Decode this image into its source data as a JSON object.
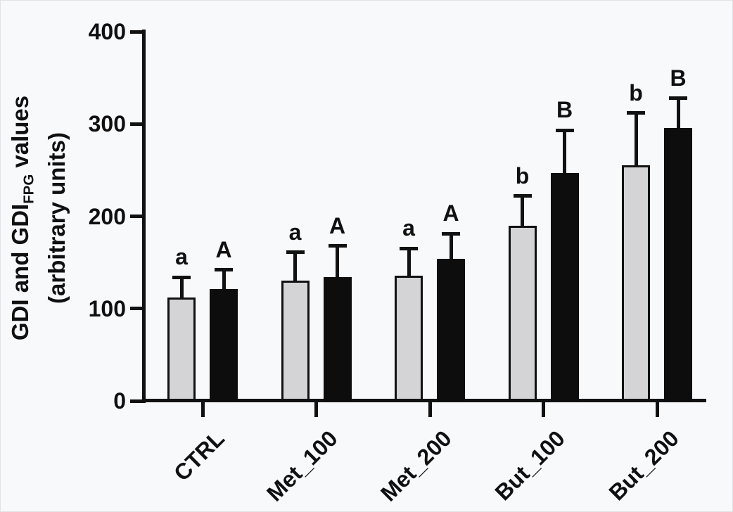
{
  "chart_data": {
    "type": "bar",
    "title": "",
    "ylabel": {
      "part1": "GDI and GDI",
      "sub": "FPG",
      "part2": " values",
      "line2": "(arbitrary units)"
    },
    "xlabel": "",
    "categories": [
      "CTRL",
      "Met_100",
      "Met_200",
      "But_100",
      "But_200"
    ],
    "series": [
      {
        "name": "GDI",
        "color": "#d4d4d6",
        "values": [
          112,
          130,
          136,
          190,
          255
        ],
        "errors": [
          22,
          31,
          29,
          32,
          57
        ],
        "letters": [
          "a",
          "a",
          "a",
          "b",
          "b"
        ]
      },
      {
        "name": "GDI_FPG",
        "color": "#0d0d0d",
        "values": [
          121,
          134,
          154,
          247,
          296
        ],
        "errors": [
          21,
          34,
          27,
          46,
          32
        ],
        "letters": [
          "A",
          "A",
          "A",
          "B",
          "B"
        ]
      }
    ],
    "y_ticks": [
      0,
      100,
      200,
      300,
      400
    ],
    "ylim": [
      0,
      400
    ],
    "grid": false,
    "legend_position": "none",
    "error_bars": "upper only",
    "annotations": "significance letters above error bars"
  },
  "colors": {
    "axis": "#111111",
    "bar_gdi": "#d4d4d6",
    "bar_gdi_fpg": "#0d0d0d",
    "background": "#f8f9fb",
    "text": "#101010"
  }
}
